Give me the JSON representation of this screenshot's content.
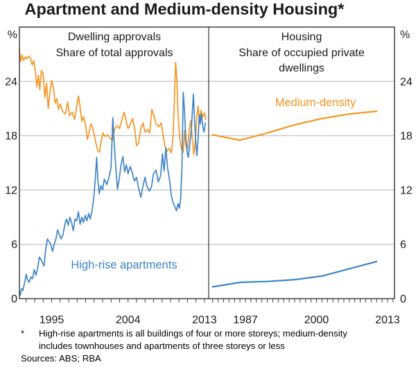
{
  "title": "Apartment and Medium-density Housing*",
  "colors": {
    "orange": "#F7941E",
    "blue": "#3E84C6",
    "grid": "#B5B5B5",
    "frame": "#3F3F3F",
    "text": "#1A1A1A"
  },
  "y_axis": {
    "unit": "%",
    "ticks": [
      0,
      6,
      12,
      18,
      24
    ],
    "max": 30
  },
  "footnote": {
    "marker": "*",
    "line1": "High-rise apartments is all buildings of four or more storeys; medium-density",
    "line2": "includes townhouses and apartments of three storeys or less",
    "sources": "Sources: ABS; RBA"
  },
  "chart_data": [
    {
      "type": "line",
      "panel": "left",
      "title": "Dwelling approvals",
      "subtitle": "Share of total approvals",
      "ylim": [
        0,
        30
      ],
      "xlim": [
        1991.2,
        2013.5
      ],
      "xticklabels": [
        1995,
        2004,
        2013
      ],
      "grid": true,
      "series_label": {
        "text": "High-rise apartments",
        "color": "blue"
      },
      "series": [
        {
          "name": "Medium-density",
          "color": "orange",
          "points": [
            [
              1991.2,
              27.6
            ],
            [
              1991.35,
              26.2
            ],
            [
              1991.5,
              26.9
            ],
            [
              1991.7,
              26.3
            ],
            [
              1991.9,
              26.7
            ],
            [
              1992.1,
              26.5
            ],
            [
              1992.3,
              26.8
            ],
            [
              1992.5,
              26.6
            ],
            [
              1992.7,
              25.8
            ],
            [
              1992.9,
              26.3
            ],
            [
              1993.1,
              24.9
            ],
            [
              1993.25,
              23.4
            ],
            [
              1993.45,
              24.7
            ],
            [
              1993.6,
              23.1
            ],
            [
              1993.8,
              25.2
            ],
            [
              1994.0,
              24.8
            ],
            [
              1994.2,
              22.2
            ],
            [
              1994.4,
              23.8
            ],
            [
              1994.6,
              21.0
            ],
            [
              1994.8,
              22.9
            ],
            [
              1995.0,
              24.1
            ],
            [
              1995.2,
              23.3
            ],
            [
              1995.4,
              21.6
            ],
            [
              1995.6,
              22.1
            ],
            [
              1995.8,
              20.9
            ],
            [
              1996.0,
              21.5
            ],
            [
              1996.3,
              20.7
            ],
            [
              1996.6,
              20.4
            ],
            [
              1996.9,
              21.7
            ],
            [
              1997.1,
              20.2
            ],
            [
              1997.4,
              20.6
            ],
            [
              1997.7,
              19.8
            ],
            [
              1998.0,
              21.5
            ],
            [
              1998.15,
              22.4
            ],
            [
              1998.35,
              21.2
            ],
            [
              1998.55,
              19.6
            ],
            [
              1998.75,
              20.1
            ],
            [
              1999.0,
              19.2
            ],
            [
              1999.2,
              17.6
            ],
            [
              1999.4,
              18.2
            ],
            [
              1999.6,
              19.3
            ],
            [
              1999.8,
              19.0
            ],
            [
              2000.0,
              18.2
            ],
            [
              2000.2,
              17.2
            ],
            [
              2000.45,
              16.3
            ],
            [
              2000.65,
              16.2
            ],
            [
              2000.85,
              17.5
            ],
            [
              2001.05,
              18.3
            ],
            [
              2001.3,
              17.9
            ],
            [
              2001.6,
              18.1
            ],
            [
              2001.9,
              17.7
            ],
            [
              2002.15,
              17.5
            ],
            [
              2002.4,
              18.7
            ],
            [
              2002.7,
              19.1
            ],
            [
              2003.0,
              18.8
            ],
            [
              2003.3,
              19.9
            ],
            [
              2003.55,
              20.6
            ],
            [
              2003.8,
              19.5
            ],
            [
              2004.0,
              18.8
            ],
            [
              2004.3,
              19.3
            ],
            [
              2004.55,
              19.9
            ],
            [
              2004.8,
              18.7
            ],
            [
              2005.0,
              16.9
            ],
            [
              2005.25,
              17.2
            ],
            [
              2005.5,
              18.8
            ],
            [
              2005.75,
              19.4
            ],
            [
              2006.0,
              18.4
            ],
            [
              2006.3,
              18.7
            ],
            [
              2006.55,
              18.3
            ],
            [
              2006.8,
              20.9
            ],
            [
              2007.05,
              20.2
            ],
            [
              2007.3,
              19.3
            ],
            [
              2007.6,
              19.0
            ],
            [
              2007.9,
              19.4
            ],
            [
              2008.1,
              18.2
            ],
            [
              2008.35,
              16.8
            ],
            [
              2008.6,
              16.3
            ],
            [
              2008.85,
              16.6
            ],
            [
              2009.1,
              16.1
            ],
            [
              2009.3,
              17.9
            ],
            [
              2009.45,
              21.5
            ],
            [
              2009.6,
              26.1
            ],
            [
              2009.75,
              24.2
            ],
            [
              2009.9,
              20.2
            ],
            [
              2010.1,
              17.6
            ],
            [
              2010.3,
              16.5
            ],
            [
              2010.5,
              16.2
            ],
            [
              2010.65,
              18.6
            ],
            [
              2010.8,
              17.0
            ],
            [
              2011.0,
              16.5
            ],
            [
              2011.2,
              18.6
            ],
            [
              2011.4,
              19.7
            ],
            [
              2011.6,
              17.4
            ],
            [
              2011.75,
              15.9
            ],
            [
              2011.95,
              17.7
            ],
            [
              2012.1,
              20.1
            ],
            [
              2012.25,
              21.3
            ],
            [
              2012.4,
              19.6
            ],
            [
              2012.6,
              20.8
            ],
            [
              2012.8,
              20.1
            ],
            [
              2013.0,
              20.5
            ],
            [
              2013.15,
              19.8
            ]
          ]
        },
        {
          "name": "High-rise apartments",
          "color": "blue",
          "points": [
            [
              1991.2,
              0.8
            ],
            [
              1991.3,
              0.4
            ],
            [
              1991.45,
              1.1
            ],
            [
              1991.6,
              0.9
            ],
            [
              1991.8,
              1.7
            ],
            [
              1992.0,
              2.7
            ],
            [
              1992.15,
              2.1
            ],
            [
              1992.35,
              1.8
            ],
            [
              1992.55,
              2.4
            ],
            [
              1992.75,
              2.2
            ],
            [
              1992.95,
              3.2
            ],
            [
              1993.15,
              2.6
            ],
            [
              1993.35,
              3.4
            ],
            [
              1993.55,
              4.6
            ],
            [
              1993.75,
              4.3
            ],
            [
              1993.95,
              3.9
            ],
            [
              1994.1,
              3.6
            ],
            [
              1994.3,
              5.5
            ],
            [
              1994.5,
              6.6
            ],
            [
              1994.7,
              6.3
            ],
            [
              1994.9,
              6.0
            ],
            [
              1995.1,
              5.2
            ],
            [
              1995.3,
              6.0
            ],
            [
              1995.5,
              6.6
            ],
            [
              1995.7,
              7.6
            ],
            [
              1995.9,
              7.1
            ],
            [
              1996.1,
              6.6
            ],
            [
              1996.35,
              7.1
            ],
            [
              1996.55,
              8.2
            ],
            [
              1996.75,
              8.8
            ],
            [
              1996.95,
              8.1
            ],
            [
              1997.15,
              9.0
            ],
            [
              1997.35,
              8.4
            ],
            [
              1997.55,
              7.5
            ],
            [
              1997.75,
              8.8
            ],
            [
              1997.95,
              8.6
            ],
            [
              1998.15,
              9.6
            ],
            [
              1998.35,
              8.2
            ],
            [
              1998.55,
              9.0
            ],
            [
              1998.75,
              8.4
            ],
            [
              1998.95,
              9.2
            ],
            [
              1999.15,
              8.6
            ],
            [
              1999.35,
              9.4
            ],
            [
              1999.55,
              8.8
            ],
            [
              1999.75,
              9.7
            ],
            [
              1999.95,
              11.0
            ],
            [
              2000.15,
              13.4
            ],
            [
              2000.3,
              15.6
            ],
            [
              2000.45,
              13.0
            ],
            [
              2000.6,
              11.6
            ],
            [
              2000.8,
              12.5
            ],
            [
              2001.0,
              12.0
            ],
            [
              2001.2,
              13.2
            ],
            [
              2001.5,
              12.6
            ],
            [
              2001.8,
              13.6
            ],
            [
              2002.0,
              14.5
            ],
            [
              2002.2,
              20.0
            ],
            [
              2002.35,
              17.4
            ],
            [
              2002.55,
              14.7
            ],
            [
              2002.75,
              12.1
            ],
            [
              2002.95,
              13.1
            ],
            [
              2003.15,
              14.7
            ],
            [
              2003.4,
              15.7
            ],
            [
              2003.6,
              14.0
            ],
            [
              2003.8,
              14.8
            ],
            [
              2004.0,
              13.8
            ],
            [
              2004.25,
              14.6
            ],
            [
              2004.5,
              13.9
            ],
            [
              2004.75,
              13.0
            ],
            [
              2005.0,
              13.4
            ],
            [
              2005.25,
              12.2
            ],
            [
              2005.5,
              11.2
            ],
            [
              2005.75,
              12.4
            ],
            [
              2006.0,
              13.4
            ],
            [
              2006.2,
              12.5
            ],
            [
              2006.5,
              11.9
            ],
            [
              2006.75,
              12.3
            ],
            [
              2007.0,
              13.8
            ],
            [
              2007.3,
              14.2
            ],
            [
              2007.55,
              12.9
            ],
            [
              2007.85,
              13.6
            ],
            [
              2008.05,
              16.0
            ],
            [
              2008.25,
              14.1
            ],
            [
              2008.45,
              16.7
            ],
            [
              2008.65,
              14.5
            ],
            [
              2008.9,
              13.0
            ],
            [
              2009.1,
              11.4
            ],
            [
              2009.3,
              10.6
            ],
            [
              2009.5,
              10.2
            ],
            [
              2009.7,
              9.7
            ],
            [
              2009.9,
              10.5
            ],
            [
              2010.05,
              10.0
            ],
            [
              2010.2,
              11.1
            ],
            [
              2010.35,
              14.5
            ],
            [
              2010.5,
              22.8
            ],
            [
              2010.65,
              20.8
            ],
            [
              2010.8,
              17.8
            ],
            [
              2010.95,
              16.2
            ],
            [
              2011.1,
              15.6
            ],
            [
              2011.25,
              16.9
            ],
            [
              2011.45,
              18.6
            ],
            [
              2011.6,
              21.0
            ],
            [
              2011.7,
              22.6
            ],
            [
              2011.85,
              19.4
            ],
            [
              2012.0,
              17.0
            ],
            [
              2012.1,
              15.8
            ],
            [
              2012.25,
              17.6
            ],
            [
              2012.4,
              20.3
            ],
            [
              2012.5,
              19.3
            ],
            [
              2012.65,
              20.4
            ],
            [
              2012.8,
              19.0
            ],
            [
              2012.95,
              18.4
            ],
            [
              2013.1,
              19.4
            ]
          ]
        }
      ]
    },
    {
      "type": "line",
      "panel": "right",
      "title": "Housing",
      "subtitle": "Share of occupied private dwellings",
      "ylim": [
        0,
        30
      ],
      "xlim": [
        1980.28,
        2014.27
      ],
      "xticklabels": [
        1987,
        2000,
        2013
      ],
      "grid": true,
      "series_label": {
        "text": "Medium-density",
        "color": "orange"
      },
      "series": [
        {
          "name": "Medium-density",
          "color": "orange",
          "points": [
            [
              1981,
              18.1
            ],
            [
              1986,
              17.5
            ],
            [
              1991,
              18.3
            ],
            [
              1996,
              19.2
            ],
            [
              2001,
              19.9
            ],
            [
              2006,
              20.4
            ],
            [
              2011,
              20.7
            ]
          ]
        },
        {
          "name": "High-rise apartments",
          "color": "blue",
          "points": [
            [
              1981,
              1.3
            ],
            [
              1986,
              1.8
            ],
            [
              1991,
              1.9
            ],
            [
              1996,
              2.1
            ],
            [
              2001,
              2.5
            ],
            [
              2006,
              3.3
            ],
            [
              2011,
              4.1
            ]
          ]
        }
      ]
    }
  ]
}
